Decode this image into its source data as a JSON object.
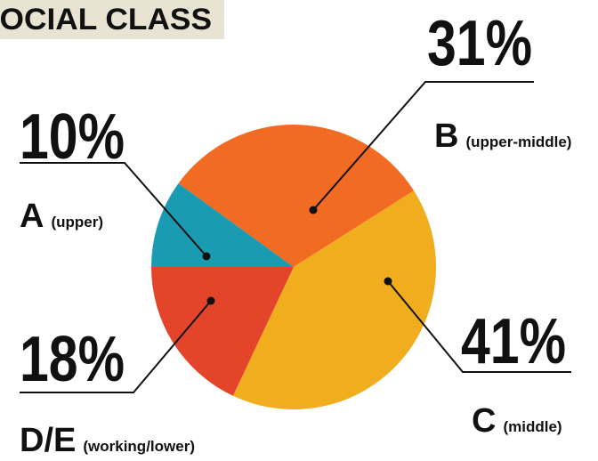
{
  "chart_data": {
    "type": "pie",
    "title": "SOCIAL CLASS",
    "categories": [
      "A",
      "B",
      "C",
      "D/E"
    ],
    "descriptions": [
      "(upper)",
      "(upper-middle)",
      "(middle)",
      "(working/lower)"
    ],
    "values": [
      10,
      31,
      41,
      18
    ],
    "value_labels": [
      "10%",
      "31%",
      "41%",
      "18%"
    ],
    "colors": [
      "#1b9bb1",
      "#f26b22",
      "#f0ae1f",
      "#e4442a"
    ]
  }
}
